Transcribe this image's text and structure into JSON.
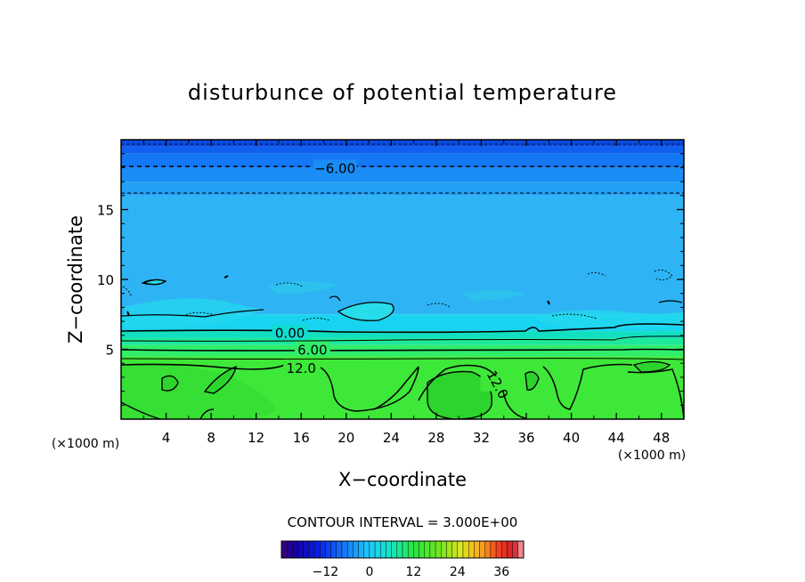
{
  "chart_data": {
    "type": "heatmap",
    "title": "disturbunce of potential temperature",
    "xlabel": "X−coordinate",
    "ylabel": "Z−coordinate",
    "x_unit": "(×1000 m)",
    "y_unit": "(×1000 m)",
    "xlim": [
      0,
      50
    ],
    "ylim": [
      0,
      20
    ],
    "x_ticks": [
      "4",
      "8",
      "12",
      "16",
      "20",
      "24",
      "28",
      "32",
      "36",
      "40",
      "44",
      "48"
    ],
    "y_ticks": [
      "5",
      "10",
      "15"
    ],
    "contour_interval_text": "CONTOUR INTERVAL = 3.000E+00",
    "contour_labels": [
      {
        "text": "−6.00",
        "x": 19,
        "z": 18
      },
      {
        "text": "0.00",
        "x": 15,
        "z": 6.2
      },
      {
        "text": "6.00",
        "x": 17,
        "z": 5
      },
      {
        "text": "12.0",
        "x": 16,
        "z": 3.7
      },
      {
        "text": "12.0",
        "x": 33.5,
        "z": 2.5
      }
    ],
    "bands": [
      {
        "z0": 19.5,
        "z1": 20,
        "value": -12,
        "color": "#0a4ae0"
      },
      {
        "z0": 19.0,
        "z1": 19.5,
        "value": -10,
        "color": "#1060f0"
      },
      {
        "z0": 18.0,
        "z1": 19.0,
        "value": -8,
        "color": "#1478f4"
      },
      {
        "z0": 17.0,
        "z1": 18.0,
        "value": -6,
        "color": "#1a8cf6"
      },
      {
        "z0": 16.0,
        "z1": 17.0,
        "value": -5,
        "color": "#22a0f6"
      },
      {
        "z0": 7.5,
        "z1": 16.0,
        "value": -3,
        "color": "#2eb4f4"
      },
      {
        "z0": 6.3,
        "z1": 7.5,
        "value": -1,
        "color": "#18d4f0"
      },
      {
        "z0": 5.8,
        "z1": 6.3,
        "value": 1,
        "color": "#10e0c0"
      },
      {
        "z0": 5.3,
        "z1": 5.8,
        "value": 3,
        "color": "#1ee89a"
      },
      {
        "z0": 4.5,
        "z1": 5.3,
        "value": 6,
        "color": "#30ee6a"
      },
      {
        "z0": 0,
        "z1": 4.5,
        "value": 12,
        "color": "#3ee838"
      }
    ],
    "colorbar": {
      "ticks": [
        "−12",
        "0",
        "12",
        "24",
        "36"
      ],
      "tick_values": [
        -12,
        0,
        12,
        24,
        36
      ],
      "range": [
        -24,
        42
      ]
    }
  }
}
